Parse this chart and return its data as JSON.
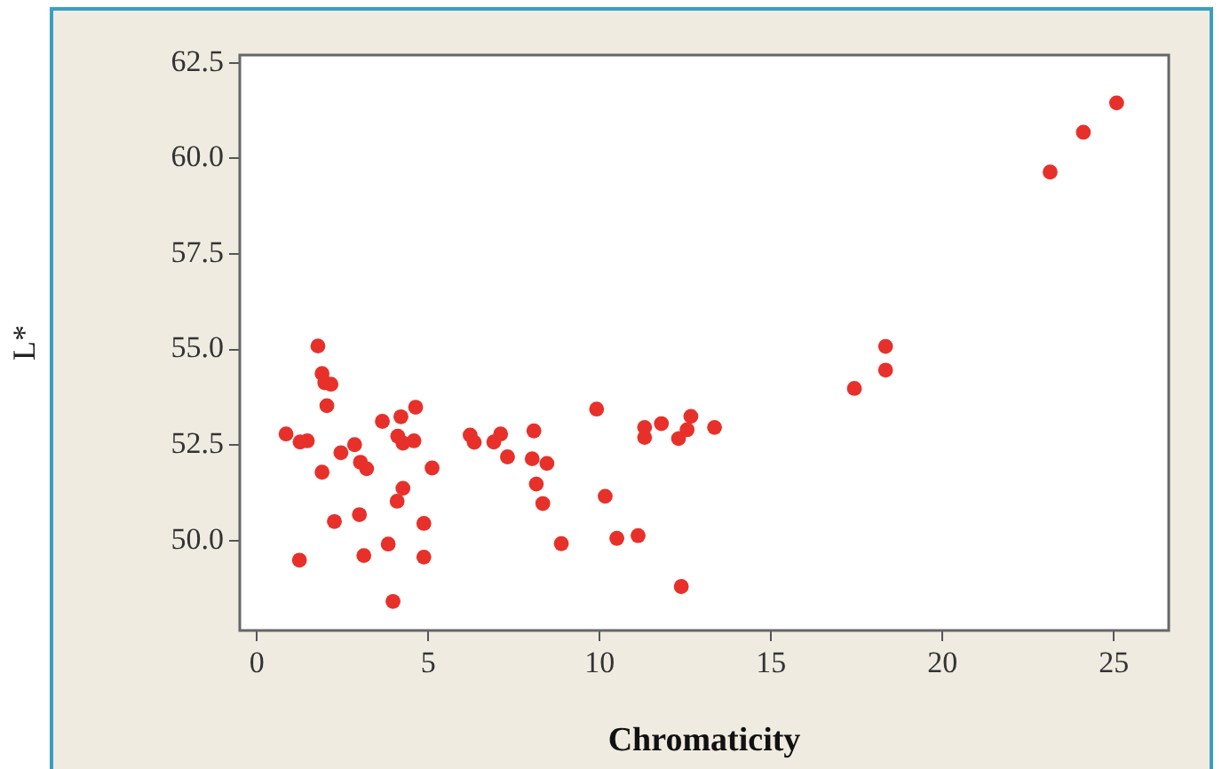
{
  "chart_data": {
    "type": "scatter",
    "xlabel": "Chromaticity",
    "ylabel": "L*",
    "xlim": [
      -0.5,
      26.6
    ],
    "xticks": [
      0,
      5,
      10,
      15,
      20,
      25
    ],
    "ylim": [
      47.65,
      62.7
    ],
    "yticks": [
      {
        "value": 50,
        "label": "50.0"
      },
      {
        "value": 52.5,
        "label": "52.5"
      },
      {
        "value": 55,
        "label": "55.0"
      },
      {
        "value": 57.5,
        "label": "57.5"
      },
      {
        "value": 60,
        "label": "60.0"
      },
      {
        "value": 62.5,
        "label": "62.5"
      }
    ],
    "marker": "circle",
    "grid": false,
    "series": [
      {
        "color": "#e8302a",
        "x": [
          1.78,
          1.9,
          1.98,
          2.16,
          2.04,
          0.85,
          1.26,
          1.47,
          1.9,
          2.45,
          2.85,
          3.02,
          3.2,
          2.26,
          2.99,
          1.24,
          3.12,
          3.83,
          3.97,
          3.66,
          4.2,
          4.63,
          4.11,
          4.26,
          4.58,
          5.11,
          4.26,
          4.09,
          4.87,
          4.87,
          6.22,
          6.34,
          6.91,
          7.11,
          7.31,
          8.08,
          8.03,
          8.46,
          8.15,
          8.34,
          8.88,
          9.91,
          10.16,
          10.5,
          11.12,
          11.31,
          11.31,
          11.8,
          12.3,
          12.55,
          12.66,
          13.35,
          12.38,
          17.43,
          18.34,
          18.34,
          23.14,
          24.11,
          25.08
        ],
        "values": [
          55.09,
          54.37,
          54.13,
          54.09,
          53.53,
          52.79,
          52.58,
          52.61,
          51.79,
          52.3,
          52.51,
          52.05,
          51.88,
          50.5,
          50.68,
          49.49,
          49.61,
          49.91,
          48.41,
          53.12,
          53.24,
          53.49,
          52.73,
          52.55,
          52.61,
          51.9,
          51.37,
          51.03,
          50.45,
          49.57,
          52.76,
          52.57,
          52.58,
          52.79,
          52.19,
          52.87,
          52.14,
          52.02,
          51.48,
          50.97,
          49.92,
          53.44,
          51.16,
          50.06,
          50.13,
          52.96,
          52.7,
          53.06,
          52.67,
          52.9,
          53.25,
          52.96,
          48.8,
          53.98,
          54.46,
          55.08,
          59.64,
          60.68,
          61.45
        ]
      }
    ]
  }
}
